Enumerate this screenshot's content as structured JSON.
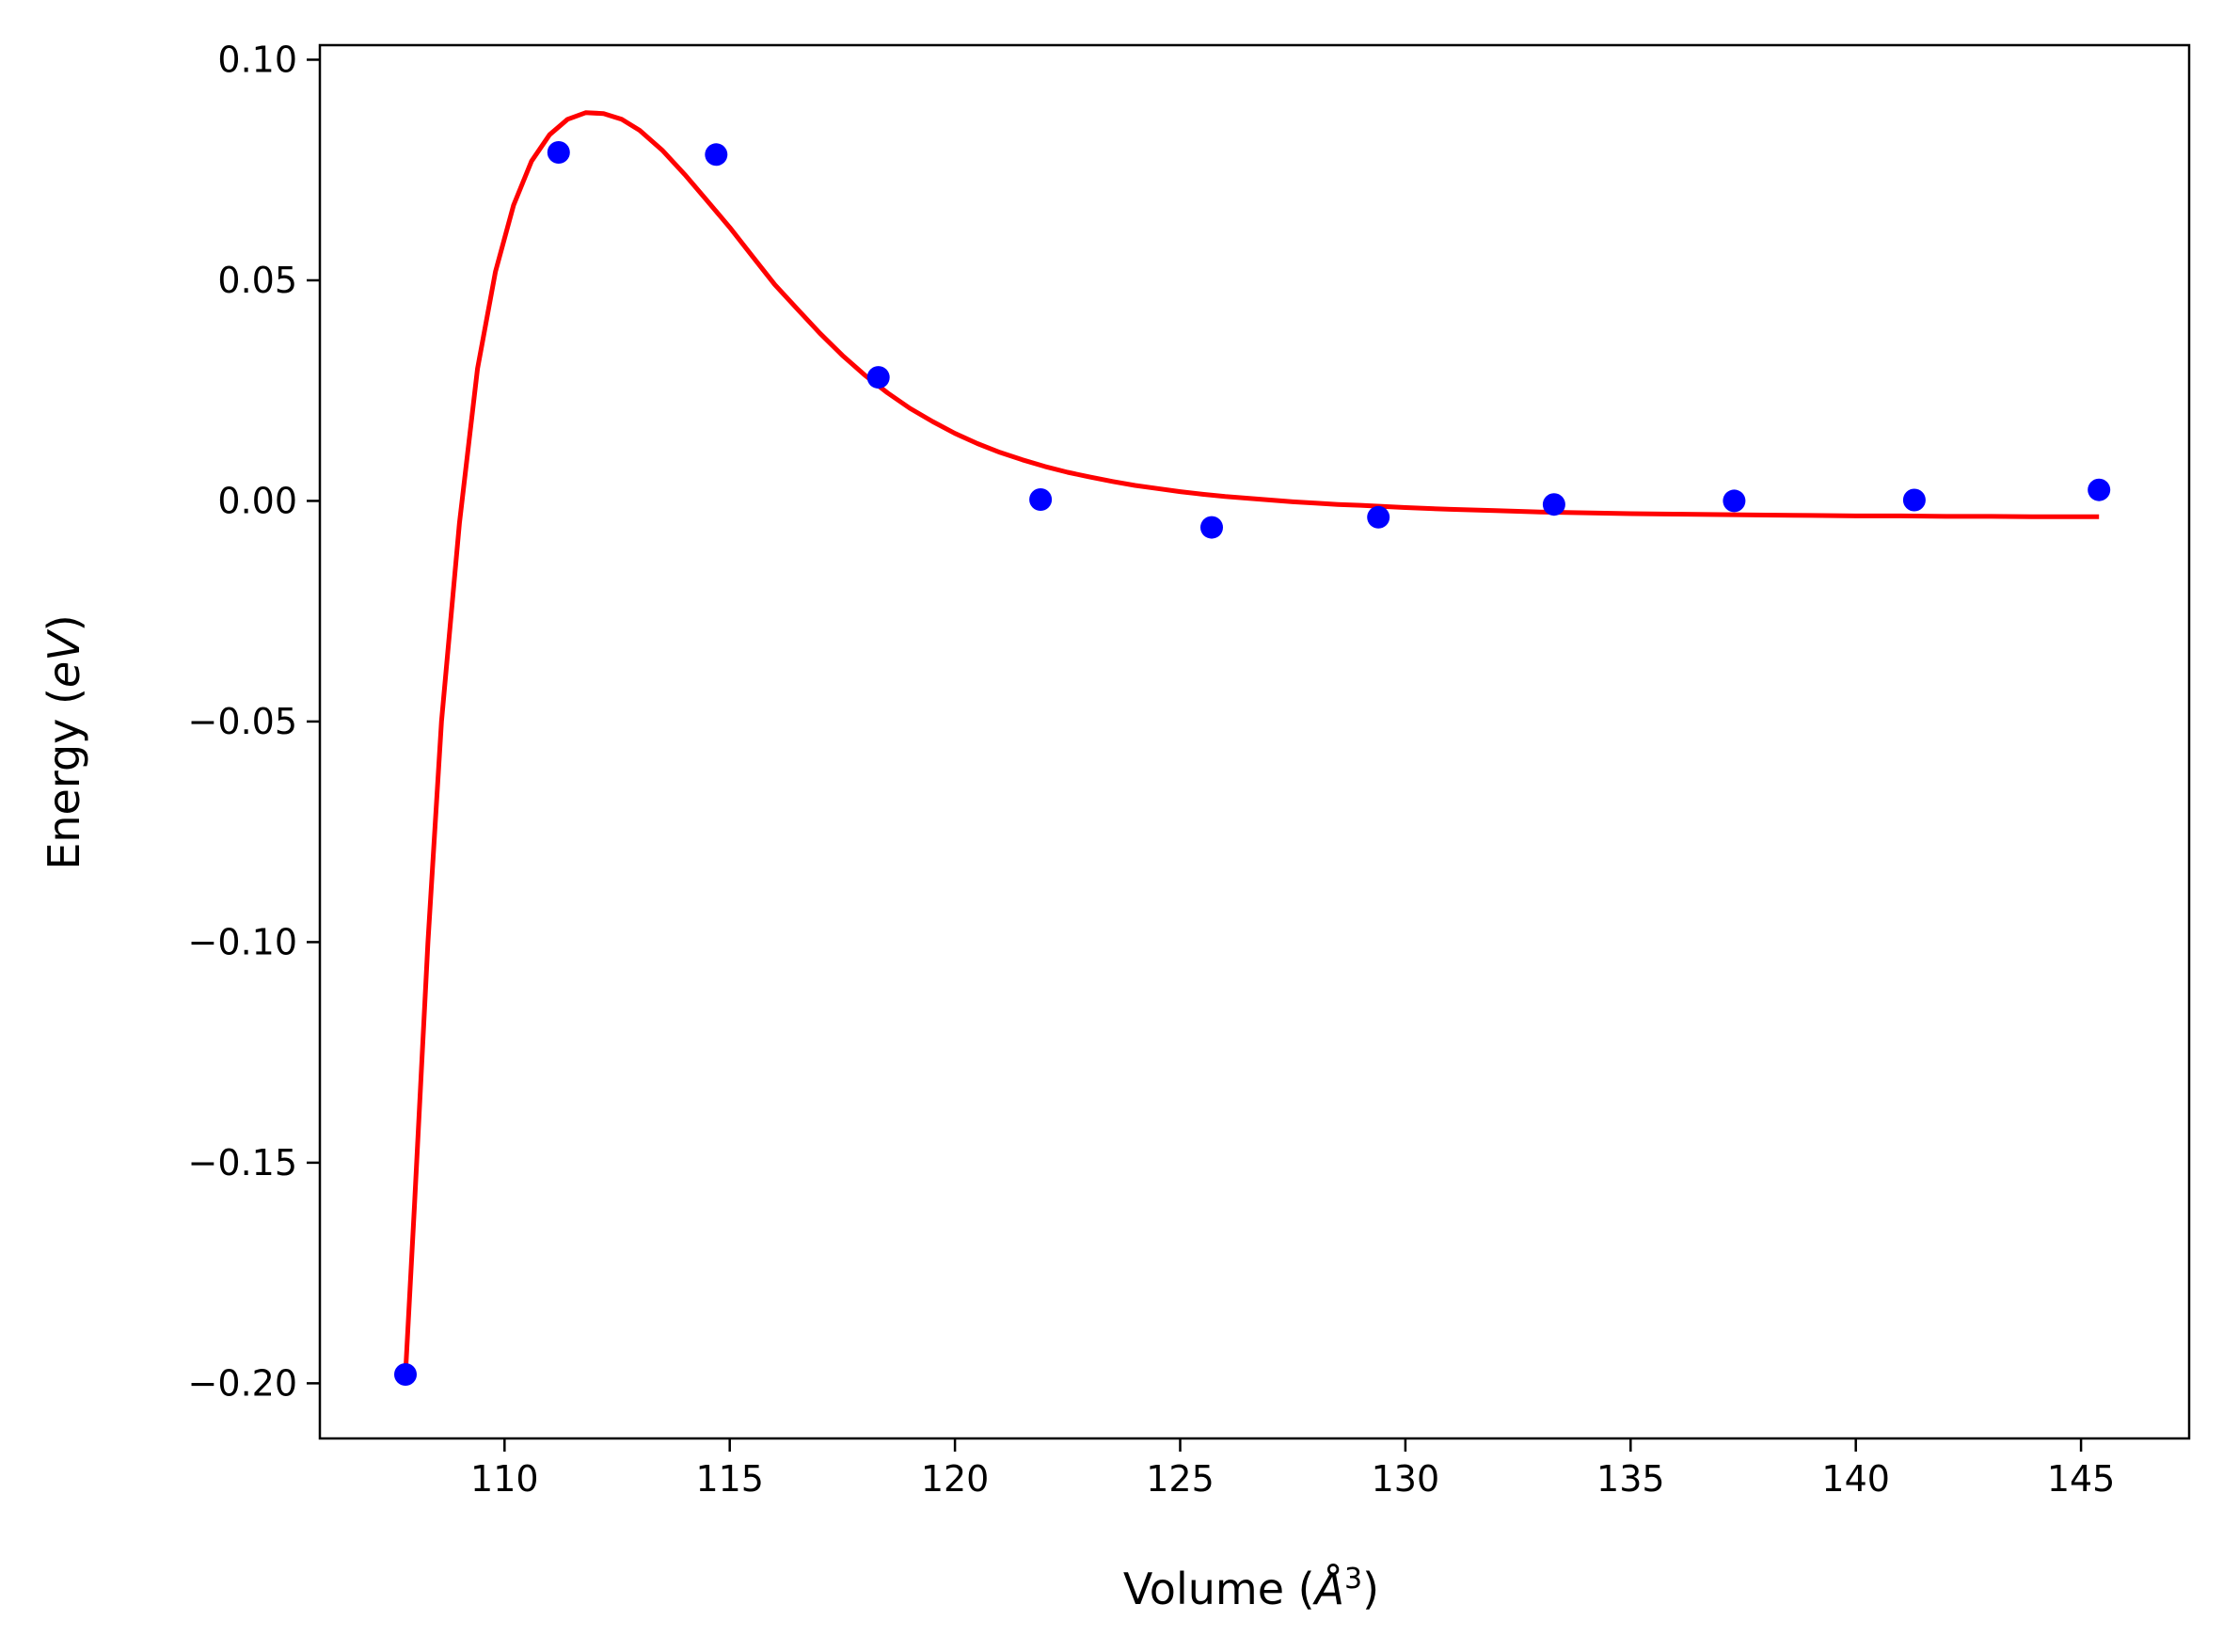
{
  "chart_data": {
    "type": "scatter",
    "title": "",
    "xlabel_main": "Volume (",
    "xlabel_unit": "Å",
    "xlabel_sup": "3",
    "xlabel_close": ")",
    "ylabel_main": "Energy (",
    "ylabel_unit": "eV",
    "ylabel_close": ")",
    "xlim": [
      105.9,
      147.4
    ],
    "ylim": [
      -0.2125,
      0.1033
    ],
    "xticks": [
      110,
      115,
      120,
      125,
      130,
      135,
      140,
      145
    ],
    "xtick_labels": [
      "110",
      "115",
      "120",
      "125",
      "130",
      "135",
      "140",
      "145"
    ],
    "yticks": [
      0.1,
      0.05,
      0.0,
      -0.05,
      -0.1,
      -0.15,
      -0.2
    ],
    "ytick_labels": [
      "0.10",
      "0.05",
      "0.00",
      "−0.05",
      "−0.10",
      "−0.15",
      "−0.20"
    ],
    "grid": false,
    "series": [
      {
        "kind": "points",
        "color": "#0000ff",
        "x": [
          107.8,
          111.2,
          114.7,
          118.3,
          121.9,
          125.7,
          129.4,
          133.3,
          137.3,
          141.3,
          145.4
        ],
        "y": [
          -0.198,
          0.079,
          0.0785,
          0.028,
          0.0003,
          -0.006,
          -0.0037,
          -0.0008,
          0.0,
          0.0002,
          0.0025
        ]
      },
      {
        "kind": "fit-line",
        "color": "#ff0000",
        "x": [
          107.8,
          108.0,
          108.3,
          108.6,
          109.0,
          109.4,
          109.8,
          110.2,
          110.6,
          111.0,
          111.4,
          111.8,
          112.2,
          112.6,
          113.0,
          113.5,
          114.0,
          114.5,
          115.0,
          115.5,
          116.0,
          116.5,
          117.0,
          117.5,
          118.0,
          118.5,
          119.0,
          119.5,
          120.0,
          120.5,
          121.0,
          121.5,
          122.0,
          122.5,
          123.0,
          123.5,
          124.0,
          124.5,
          125.0,
          125.5,
          126.0,
          126.5,
          127.0,
          127.5,
          128.0,
          128.5,
          129.0,
          130.0,
          131.0,
          132.0,
          133.0,
          134.0,
          135.0,
          136.0,
          137.0,
          138.0,
          139.0,
          140.0,
          141.0,
          142.0,
          143.0,
          144.0,
          145.4
        ],
        "y": [
          -0.198,
          -0.16,
          -0.1,
          -0.05,
          -0.005,
          0.03,
          0.052,
          0.067,
          0.077,
          0.083,
          0.0865,
          0.088,
          0.0878,
          0.0865,
          0.084,
          0.0795,
          0.074,
          0.068,
          0.062,
          0.0555,
          0.049,
          0.0435,
          0.038,
          0.033,
          0.0285,
          0.0245,
          0.021,
          0.018,
          0.0153,
          0.013,
          0.011,
          0.0093,
          0.0078,
          0.0065,
          0.0054,
          0.0044,
          0.0035,
          0.0028,
          0.0021,
          0.0015,
          0.001,
          0.0006,
          0.0002,
          -0.0002,
          -0.0005,
          -0.0008,
          -0.001,
          -0.0015,
          -0.0019,
          -0.0022,
          -0.0025,
          -0.0027,
          -0.0029,
          -0.003,
          -0.0031,
          -0.0032,
          -0.0033,
          -0.0034,
          -0.0034,
          -0.0035,
          -0.0035,
          -0.0036,
          -0.0036
        ]
      }
    ]
  }
}
